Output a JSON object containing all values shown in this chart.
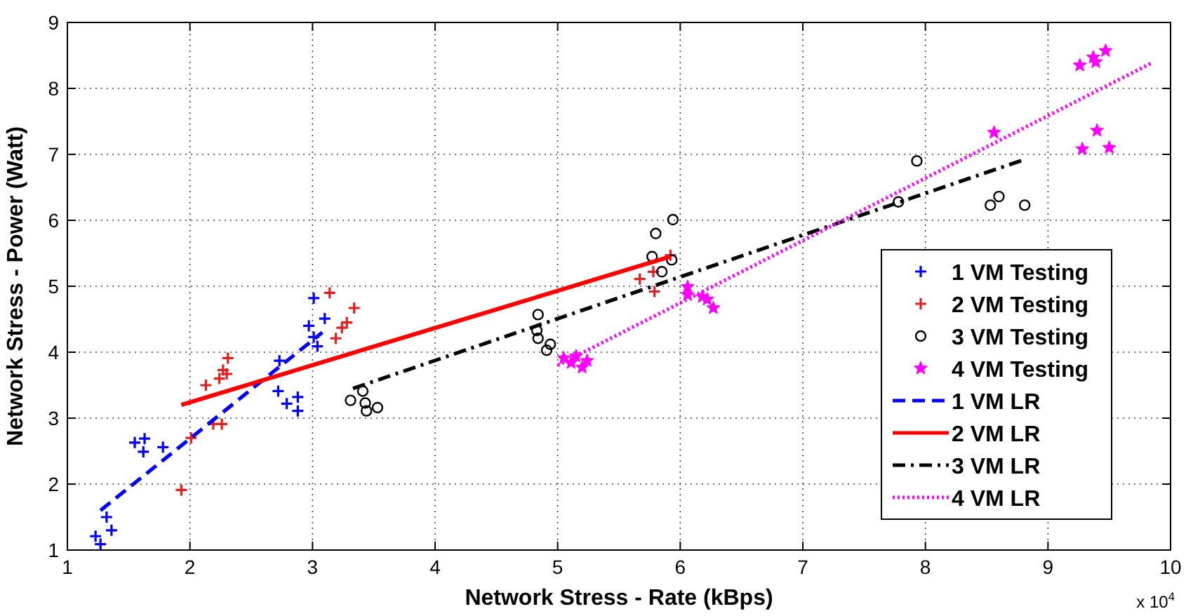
{
  "chart_data": {
    "type": "scatter",
    "xlabel": "Network Stress - Rate (kBps)",
    "ylabel": "Network Stress - Power (Watt)",
    "xlim": [
      1,
      10
    ],
    "xticks": [
      1,
      2,
      3,
      4,
      5,
      6,
      7,
      8,
      9,
      10
    ],
    "ylim": [
      1,
      9
    ],
    "yticks": [
      1,
      2,
      3,
      4,
      5,
      6,
      7,
      8,
      9
    ],
    "grid": true,
    "legend": "right",
    "annotations": [
      "x 10$^{4}$"
    ],
    "series": [
      {
        "name": "1 VM Testing",
        "marker": "cross",
        "color": "#0000ff",
        "x": [
          1.23,
          1.27,
          1.32,
          1.36,
          1.55,
          1.63,
          1.62,
          1.78,
          2.72,
          2.73,
          2.79,
          2.88,
          2.88,
          2.97,
          3.01,
          3.1,
          3.01,
          3.04
        ],
        "values": [
          1.21,
          1.09,
          1.5,
          1.3,
          2.63,
          2.69,
          2.49,
          2.56,
          3.41,
          3.87,
          3.22,
          3.32,
          3.11,
          4.4,
          4.82,
          4.51,
          4.23,
          4.09
        ]
      },
      {
        "name": "2 VM Testing",
        "marker": "cross",
        "color": "#e02020",
        "x": [
          1.93,
          2.01,
          2.13,
          2.19,
          2.26,
          2.24,
          2.27,
          2.31,
          2.3,
          3.14,
          3.34,
          3.24,
          3.19,
          3.28,
          5.67,
          5.78,
          5.79,
          5.92
        ],
        "values": [
          1.91,
          2.7,
          3.5,
          2.91,
          2.91,
          3.6,
          3.73,
          3.91,
          3.67,
          4.9,
          4.67,
          4.37,
          4.21,
          4.45,
          5.11,
          5.22,
          4.92,
          5.47
        ]
      },
      {
        "name": "3 VM Testing",
        "marker": "circle",
        "color": "#000000",
        "x": [
          3.31,
          3.41,
          3.43,
          3.44,
          3.53,
          4.84,
          4.83,
          4.84,
          4.94,
          4.91,
          5.94,
          5.8,
          5.77,
          5.85,
          5.93,
          7.78,
          7.93,
          8.53,
          8.6,
          8.81
        ],
        "values": [
          3.27,
          3.41,
          3.23,
          3.11,
          3.16,
          4.57,
          4.33,
          4.21,
          4.12,
          4.03,
          6.01,
          5.8,
          5.45,
          5.22,
          5.4,
          6.28,
          6.9,
          6.23,
          6.36,
          6.23
        ]
      },
      {
        "name": "4 VM Testing",
        "marker": "star",
        "color": "#ff00ff",
        "x": [
          5.05,
          5.15,
          5.2,
          5.24,
          5.11,
          6.06,
          6.06,
          6.18,
          6.22,
          6.27,
          8.56,
          9.26,
          9.37,
          9.39,
          9.47,
          9.4,
          9.28,
          9.5
        ],
        "values": [
          3.91,
          3.94,
          3.77,
          3.87,
          3.84,
          4.99,
          4.87,
          4.84,
          4.8,
          4.67,
          7.33,
          8.35,
          8.47,
          8.4,
          8.57,
          7.36,
          7.08,
          7.1
        ]
      },
      {
        "name": "1 VM LR",
        "type": "line",
        "line_style": "dashed",
        "color": "#0000ff",
        "x": [
          1.27,
          3.08
        ],
        "values": [
          1.6,
          4.3
        ]
      },
      {
        "name": "2 VM LR",
        "type": "line",
        "line_style": "solid",
        "color": "#ff0000",
        "x": [
          1.93,
          5.92
        ],
        "values": [
          3.2,
          5.45
        ]
      },
      {
        "name": "3 VM LR",
        "type": "line",
        "line_style": "dashdot",
        "color": "#000000",
        "x": [
          3.33,
          8.79
        ],
        "values": [
          3.45,
          6.91
        ]
      },
      {
        "name": "4 VM LR",
        "type": "line",
        "line_style": "dotted",
        "color": "#ff00ff",
        "x": [
          5.0,
          9.84
        ],
        "values": [
          3.8,
          8.38
        ]
      }
    ]
  }
}
